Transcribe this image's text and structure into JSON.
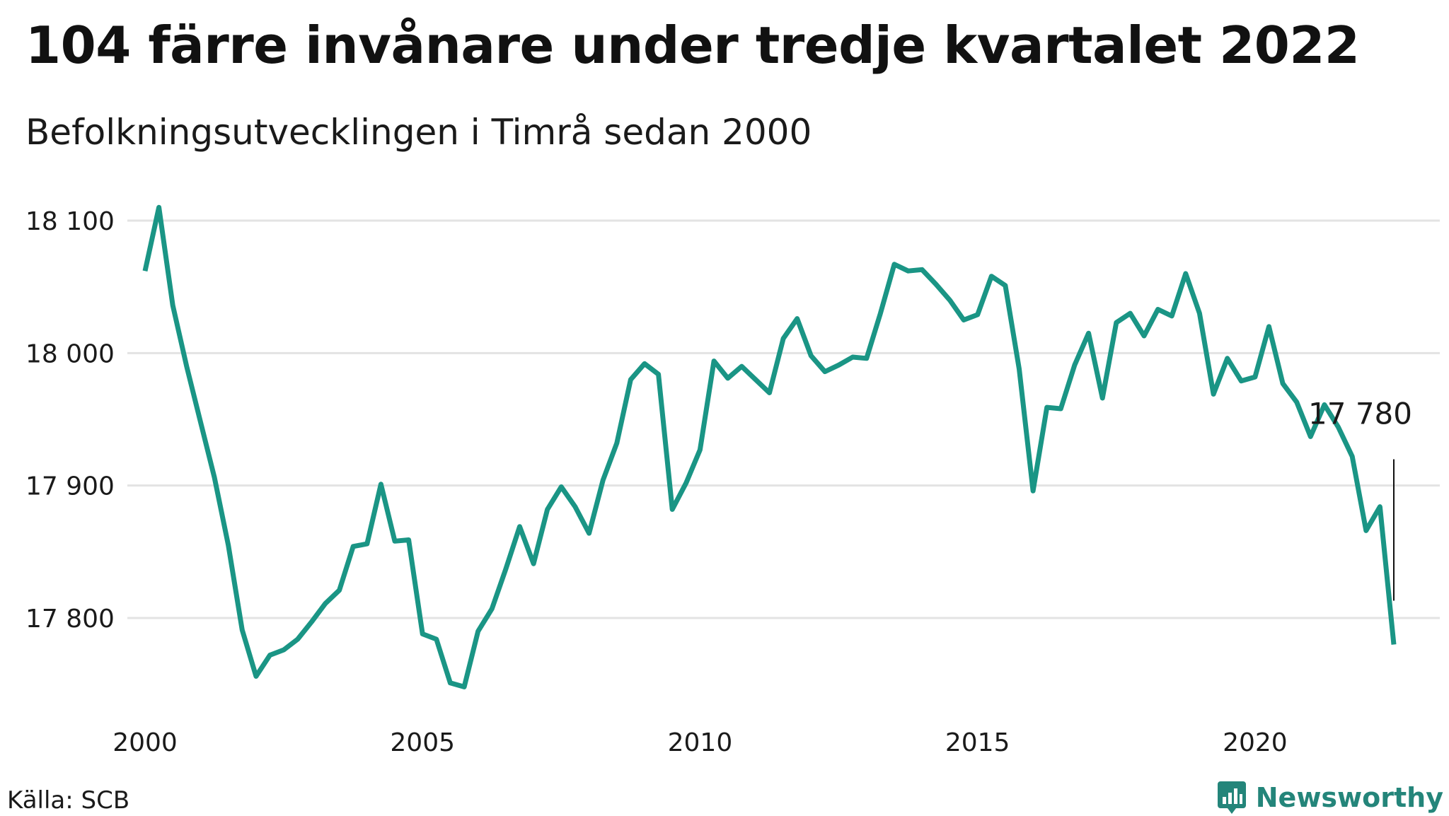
{
  "title": "104 färre invånare under tredje kvartalet 2022",
  "subtitle": "Befolkningsutvecklingen i Timrå sedan 2000",
  "source": "Källa: SCB",
  "brand": {
    "name": "Newsworthy",
    "icon": "newsworthy-logo-icon",
    "color": "#24857a"
  },
  "chart_data": {
    "type": "line",
    "title": "104 färre invånare under tredje kvartalet 2022",
    "subtitle": "Befolkningsutvecklingen i Timrå sedan 2000",
    "xlabel": "",
    "ylabel": "",
    "line_color": "#1a9585",
    "grid": true,
    "xlim": [
      2000,
      2023.2
    ],
    "ylim": [
      17730,
      18120
    ],
    "x_ticks": [
      {
        "value": 2000,
        "label": "2000"
      },
      {
        "value": 2005,
        "label": "2005"
      },
      {
        "value": 2010,
        "label": "2010"
      },
      {
        "value": 2015,
        "label": "2015"
      },
      {
        "value": 2020,
        "label": "2020"
      }
    ],
    "y_ticks": [
      {
        "value": 17800,
        "label": "17 800"
      },
      {
        "value": 17900,
        "label": "17 900"
      },
      {
        "value": 18000,
        "label": "18 000"
      },
      {
        "value": 18100,
        "label": "18 100"
      }
    ],
    "series": [
      {
        "x": [
          2000.0,
          2000.25,
          2000.5,
          2000.75,
          2001.0,
          2001.25,
          2001.5,
          2001.75,
          2002.0,
          2002.25,
          2002.5,
          2002.75,
          2003.0,
          2003.25,
          2003.5,
          2003.75,
          2004.0,
          2004.25,
          2004.5,
          2004.75,
          2005.0,
          2005.25,
          2005.5,
          2005.75,
          2006.0,
          2006.25,
          2006.5,
          2006.75,
          2007.0,
          2007.25,
          2007.5,
          2007.75,
          2008.0,
          2008.25,
          2008.5,
          2008.75,
          2009.0,
          2009.25,
          2009.5,
          2009.75,
          2010.0,
          2010.25,
          2010.5,
          2010.75,
          2011.0,
          2011.25,
          2011.5,
          2011.75,
          2012.0,
          2012.25,
          2012.5,
          2012.75,
          2013.0,
          2013.25,
          2013.5,
          2013.75,
          2014.0,
          2014.25,
          2014.5,
          2014.75,
          2015.0,
          2015.25,
          2015.5,
          2015.75,
          2016.0,
          2016.25,
          2016.5,
          2016.75,
          2017.0,
          2017.25,
          2017.5,
          2017.75,
          2018.0,
          2018.25,
          2018.5,
          2018.75,
          2019.0,
          2019.25,
          2019.5,
          2019.75,
          2020.0,
          2020.25,
          2020.5,
          2020.75,
          2021.0,
          2021.25,
          2021.5,
          2021.75,
          2022.0,
          2022.25,
          2022.5
        ],
        "y": [
          18062,
          18110,
          18036,
          17990,
          17948,
          17906,
          17855,
          17791,
          17756,
          17772,
          17776,
          17784,
          17797,
          17811,
          17821,
          17854,
          17856,
          17901,
          17858,
          17859,
          17788,
          17784,
          17751,
          17748,
          17790,
          17807,
          17837,
          17869,
          17841,
          17882,
          17899,
          17884,
          17864,
          17904,
          17932,
          17980,
          17992,
          17984,
          17882,
          17902,
          17927,
          17994,
          17981,
          17990,
          17980,
          17970,
          18011,
          18026,
          17998,
          17986,
          17991,
          17997,
          17996,
          18030,
          18067,
          18062,
          18063,
          18052,
          18040,
          18025,
          18029,
          18058,
          18051,
          17988,
          17896,
          17959,
          17958,
          17991,
          18015,
          17966,
          18023,
          18030,
          18013,
          18033,
          18028,
          18060,
          18030,
          17969,
          17996,
          17979,
          17982,
          18020,
          17977,
          17963,
          17937,
          17961,
          17944,
          17922,
          17866,
          17884,
          17780
        ]
      }
    ],
    "annotations": [
      {
        "x": 2022.5,
        "y": 17780,
        "label": "17 780"
      }
    ]
  }
}
